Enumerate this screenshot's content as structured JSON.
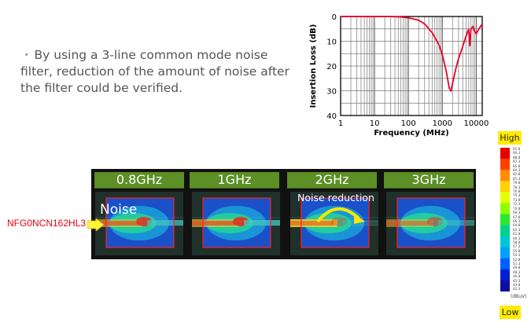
{
  "bullet": {
    "dot": "・",
    "text": "By using a 3-line common mode noise filter, reduction of the amount of noise after the filter could be verified."
  },
  "chart_data": {
    "type": "line",
    "xlabel": "Frequency (MHz)",
    "ylabel": "Insertion Loss (dB)",
    "x_scale": "log",
    "xlim": [
      1,
      15000
    ],
    "ylim": [
      0,
      40
    ],
    "y_inverted": true,
    "x_ticks": [
      "1",
      "10",
      "100",
      "1000",
      "10000"
    ],
    "y_ticks": [
      "0",
      "10",
      "20",
      "30",
      "40"
    ],
    "grid": true,
    "series": [
      {
        "color": "#e8002a",
        "x": [
          1,
          10,
          30,
          60,
          100,
          200,
          300,
          500,
          800,
          1000,
          1300,
          1600,
          1800,
          2000,
          2500,
          3000,
          4000,
          5000,
          6000,
          6500,
          7000,
          8000,
          9000,
          10000,
          12000,
          15000
        ],
        "y": [
          0,
          0,
          0,
          0.2,
          0.5,
          1.5,
          3,
          6.5,
          11.5,
          15.5,
          22,
          29,
          30,
          27,
          21,
          17,
          12,
          8,
          5,
          12,
          5,
          4,
          6,
          7,
          5,
          3
        ]
      }
    ]
  },
  "freq_panels": [
    {
      "label": "0.8GHz"
    },
    {
      "label": "1GHz"
    },
    {
      "label": "2GHz"
    },
    {
      "label": "3GHz"
    }
  ],
  "labels": {
    "noise": "Noise",
    "part_number": "NFG0NCN162HL3",
    "noise_reduction": "Noise reduction"
  },
  "color_scale": {
    "high": "High",
    "low": "Low",
    "unit": "(dBuV)",
    "ticks": [
      "91.8",
      "90.3",
      "88.8",
      "87.3",
      "85.8",
      "84.3",
      "82.8",
      "81.3",
      "79.8",
      "78.3",
      "76.8",
      "75.3",
      "73.8",
      "72.3",
      "70.8",
      "69.3",
      "67.8",
      "66.3",
      "64.8",
      "63.3",
      "61.8",
      "60.3",
      "58.8",
      "57.3",
      "55.8",
      "54.3",
      "52.8",
      "51.3",
      "49.8",
      "48.3",
      "46.8",
      "45.3",
      "43.8",
      "42.3"
    ],
    "colors": [
      "#e60000",
      "#ff4000",
      "#ff8c00",
      "#ffd200",
      "#e6ff00",
      "#8cff00",
      "#2ee62e",
      "#00d28c",
      "#00c8d2",
      "#00a0ff",
      "#0060ff",
      "#0020d0",
      "#1010a0"
    ]
  }
}
